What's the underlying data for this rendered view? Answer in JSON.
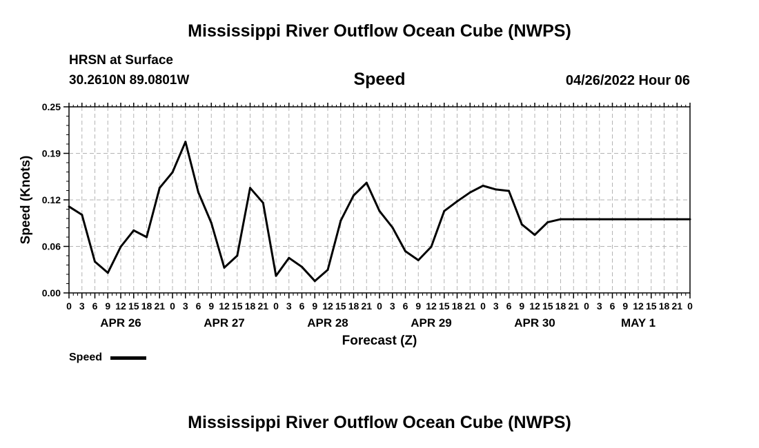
{
  "header": {
    "title": "Mississippi River Outflow Ocean Cube (NWPS)",
    "location": "HRSN at Surface",
    "coordinates": "30.2610N  89.0801W",
    "variable": "Speed",
    "datetime": "04/26/2022 Hour 06"
  },
  "footer": {
    "title": "Mississippi River Outflow Ocean Cube (NWPS)"
  },
  "legend": {
    "label": "Speed",
    "color": "#000000"
  },
  "chart_data": {
    "type": "line",
    "ylabel": "Speed (Knots)",
    "xlabel": "Forecast (Z)",
    "ylim": [
      0,
      0.25
    ],
    "yticks": [
      "0.00",
      "0.06",
      "0.12",
      "0.19",
      "0.25"
    ],
    "ytick_values": [
      0,
      0.0625,
      0.125,
      0.1875,
      0.25
    ],
    "xlim_hours": [
      0,
      144
    ],
    "xtick_labels": [
      "0",
      "3",
      "6",
      "9",
      "12",
      "15",
      "18",
      "21",
      "0",
      "3",
      "6",
      "9",
      "12",
      "15",
      "18",
      "21",
      "0",
      "3",
      "6",
      "9",
      "12",
      "15",
      "18",
      "21",
      "0",
      "3",
      "6",
      "9",
      "12",
      "15",
      "18",
      "21",
      "0",
      "3",
      "6",
      "9",
      "12",
      "15",
      "18",
      "21",
      "0",
      "3",
      "6",
      "9",
      "12",
      "15",
      "18",
      "21",
      "0"
    ],
    "day_labels": [
      "APR 26",
      "APR 27",
      "APR 28",
      "APR 29",
      "APR 30",
      "MAY 1"
    ],
    "grid": true,
    "series": [
      {
        "name": "Speed",
        "x_hours": [
          0,
          3,
          6,
          9,
          12,
          15,
          18,
          21,
          24,
          27,
          30,
          33,
          36,
          39,
          42,
          45,
          48,
          51,
          54,
          57,
          60,
          63,
          66,
          69,
          72,
          75,
          78,
          81,
          84,
          87,
          90,
          93,
          96,
          99,
          102,
          105,
          108,
          111,
          114,
          117,
          120,
          123,
          126,
          129,
          132,
          135,
          138,
          141,
          144
        ],
        "values": [
          0.116,
          0.105,
          0.042,
          0.027,
          0.062,
          0.084,
          0.075,
          0.141,
          0.162,
          0.203,
          0.135,
          0.094,
          0.034,
          0.05,
          0.141,
          0.121,
          0.023,
          0.047,
          0.035,
          0.016,
          0.031,
          0.097,
          0.131,
          0.148,
          0.11,
          0.088,
          0.056,
          0.044,
          0.062,
          0.11,
          0.123,
          0.135,
          0.144,
          0.139,
          0.137,
          0.092,
          0.078,
          0.095,
          0.099,
          0.099,
          0.099,
          0.099,
          0.099,
          0.099,
          0.099,
          0.099,
          0.099,
          0.099,
          0.099
        ]
      }
    ]
  }
}
